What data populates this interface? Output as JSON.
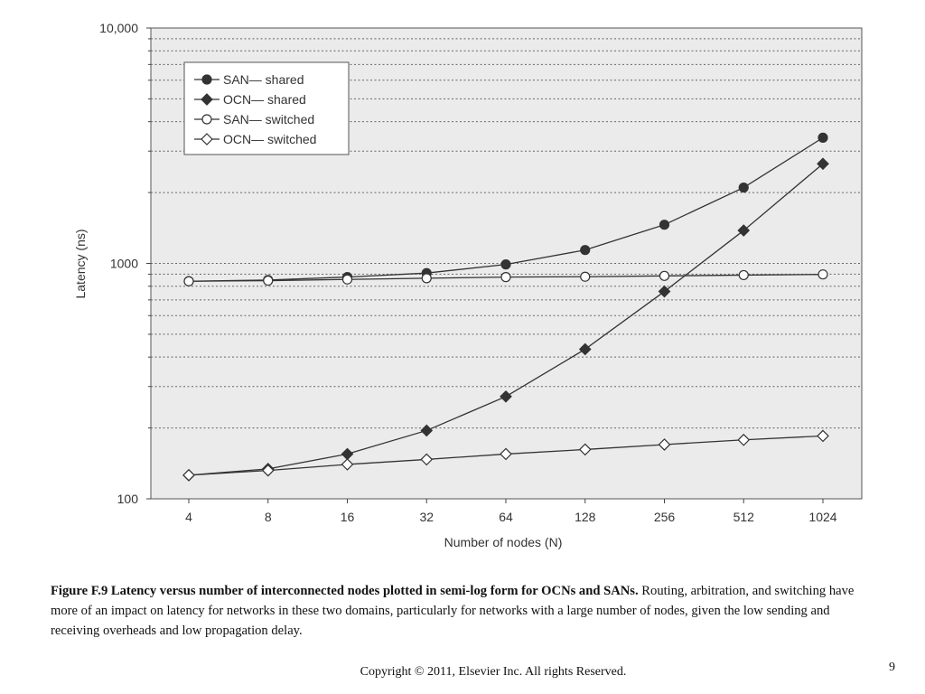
{
  "chart_data": {
    "type": "line",
    "title": "",
    "xlabel": "Number of nodes (N)",
    "ylabel": "Latency (ns)",
    "x_scale": "log2",
    "y_scale": "log",
    "categories": [
      "4",
      "8",
      "16",
      "32",
      "64",
      "128",
      "256",
      "512",
      "1024"
    ],
    "x": [
      4,
      8,
      16,
      32,
      64,
      128,
      256,
      512,
      1024
    ],
    "ylim": [
      100,
      10000
    ],
    "y_ticks": [
      {
        "value": 100,
        "label": "100"
      },
      {
        "value": 1000,
        "label": "1000"
      },
      {
        "value": 10000,
        "label": "10,000"
      }
    ],
    "grid": true,
    "legend_position": "top-left",
    "series": [
      {
        "name": "SAN— shared",
        "marker": "filled-circle",
        "values": [
          840,
          850,
          875,
          910,
          990,
          1140,
          1460,
          2100,
          3420
        ]
      },
      {
        "name": "OCN— shared",
        "marker": "filled-diamond",
        "values": [
          126,
          134,
          155,
          195,
          272,
          432,
          760,
          1380,
          2650
        ]
      },
      {
        "name": "SAN— switched",
        "marker": "open-circle",
        "values": [
          840,
          845,
          855,
          865,
          875,
          878,
          885,
          892,
          898
        ]
      },
      {
        "name": "OCN— switched",
        "marker": "open-diamond",
        "values": [
          126,
          132,
          140,
          147,
          155,
          162,
          170,
          178,
          185
        ]
      }
    ],
    "colors": {
      "plot_bg": "#ebebeb",
      "line": "#333333",
      "grid": "#666666"
    }
  },
  "caption": {
    "bold": "Figure F.9 Latency versus number of interconnected nodes plotted in semi-log form for OCNs and SANs.",
    "text": " Routing, arbitration, and switching have more of an impact on latency for networks in these two domains, particularly for networks with a large number of nodes, given the low sending and receiving overheads and low propagation delay."
  },
  "footer": {
    "copyright": "Copyright © 2011, Elsevier Inc. All rights Reserved.",
    "page_number": "9"
  }
}
